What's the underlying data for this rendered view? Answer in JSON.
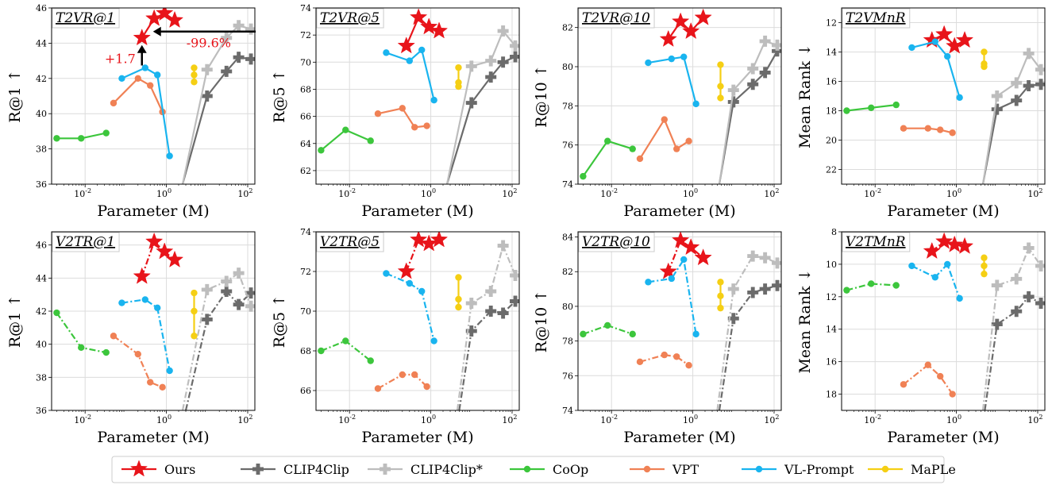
{
  "figure": {
    "background": "#ffffff",
    "grid": true
  },
  "series_styles": {
    "Ours": {
      "color": "#e8141a",
      "marker": "star"
    },
    "CLIP4Clip": {
      "color": "#6b6b6b",
      "marker": "plus"
    },
    "CLIP4Clip*": {
      "color": "#bdbdbd",
      "marker": "plus"
    },
    "CoOp": {
      "color": "#3cc63c",
      "marker": "circle"
    },
    "VPT": {
      "color": "#f08155",
      "marker": "circle"
    },
    "VL-Prompt": {
      "color": "#19b4ef",
      "marker": "circle"
    },
    "MaPLe": {
      "color": "#f5cf14",
      "marker": "circle"
    }
  },
  "legend": {
    "placement": "bottom-center",
    "entries": [
      "Ours",
      "CLIP4Clip",
      "CLIP4Clip*",
      "CoOp",
      "VPT",
      "VL-Prompt",
      "MaPLe"
    ]
  },
  "annotations": {
    "gain": "+1.7",
    "param_reduction": "-99.6%",
    "arrow_color": "#000000",
    "text_color": "#e8141a"
  },
  "chart_data": [
    {
      "type": "line",
      "title": "T2VR@1",
      "xlabel": "Parameter (M)",
      "ylabel": "R@1 ↑",
      "xscale": "log",
      "xlim": [
        0.0015,
        150
      ],
      "ylim": [
        36,
        46
      ],
      "yticks": [
        36,
        38,
        40,
        42,
        44,
        46
      ],
      "xticks": [
        "10^-2",
        "10^0",
        "10^2"
      ],
      "linestyle": "solid",
      "series": [
        {
          "name": "CoOp",
          "x": [
            0.002,
            0.008,
            0.033
          ],
          "y": [
            38.6,
            38.6,
            38.9
          ]
        },
        {
          "name": "VPT",
          "x": [
            0.05,
            0.2,
            0.4,
            0.8
          ],
          "y": [
            40.6,
            42.0,
            41.6,
            40.1
          ]
        },
        {
          "name": "VL-Prompt",
          "x": [
            0.08,
            0.3,
            0.6,
            1.2
          ],
          "y": [
            42.0,
            42.6,
            42.2,
            37.6
          ]
        },
        {
          "name": "MaPLe",
          "x": [
            4.8,
            4.8,
            4.8
          ],
          "y": [
            42.6,
            42.2,
            41.8
          ]
        },
        {
          "name": "CLIP4Clip",
          "x": [
            2.5,
            10,
            30,
            60,
            120
          ],
          "y": [
            36.0,
            41.0,
            42.4,
            43.2,
            43.1
          ]
        },
        {
          "name": "CLIP4Clip*",
          "x": [
            2.5,
            10,
            30,
            60,
            120
          ],
          "y": [
            36.0,
            42.5,
            44.3,
            45.0,
            44.8
          ]
        },
        {
          "name": "Ours",
          "x": [
            0.25,
            0.5,
            0.9,
            1.6
          ],
          "y": [
            44.3,
            45.4,
            45.7,
            45.3
          ]
        }
      ]
    },
    {
      "type": "line",
      "title": "T2VR@5",
      "xlabel": "Parameter (M)",
      "ylabel": "R@5 ↑",
      "xscale": "log",
      "xlim": [
        0.0015,
        150
      ],
      "ylim": [
        61,
        74
      ],
      "yticks": [
        62,
        64,
        66,
        68,
        70,
        72,
        74
      ],
      "xticks": [
        "10^-2",
        "10^0",
        "10^2"
      ],
      "linestyle": "solid",
      "series": [
        {
          "name": "CoOp",
          "x": [
            0.002,
            0.008,
            0.033
          ],
          "y": [
            63.5,
            65.0,
            64.2
          ]
        },
        {
          "name": "VPT",
          "x": [
            0.05,
            0.2,
            0.4,
            0.8
          ],
          "y": [
            66.2,
            66.6,
            65.2,
            65.3
          ]
        },
        {
          "name": "VL-Prompt",
          "x": [
            0.08,
            0.3,
            0.6,
            1.2
          ],
          "y": [
            70.7,
            70.1,
            70.9,
            67.2
          ]
        },
        {
          "name": "MaPLe",
          "x": [
            4.8,
            4.8,
            4.8
          ],
          "y": [
            69.6,
            68.5,
            68.2
          ]
        },
        {
          "name": "CLIP4Clip",
          "x": [
            2.5,
            10,
            30,
            60,
            120
          ],
          "y": [
            61.0,
            67.0,
            68.9,
            70.0,
            70.4
          ]
        },
        {
          "name": "CLIP4Clip*",
          "x": [
            2.5,
            10,
            30,
            60,
            120
          ],
          "y": [
            61.0,
            69.7,
            70.1,
            72.3,
            71.2
          ]
        },
        {
          "name": "Ours",
          "x": [
            0.25,
            0.5,
            0.9,
            1.6
          ],
          "y": [
            71.2,
            73.3,
            72.6,
            72.3
          ]
        }
      ]
    },
    {
      "type": "line",
      "title": "T2VR@10",
      "xlabel": "Parameter (M)",
      "ylabel": "R@10 ↑",
      "xscale": "log",
      "xlim": [
        0.0015,
        150
      ],
      "ylim": [
        74,
        83
      ],
      "yticks": [
        74,
        76,
        78,
        80,
        82
      ],
      "xticks": [
        "10^-2",
        "10^0",
        "10^2"
      ],
      "linestyle": "solid",
      "series": [
        {
          "name": "CoOp",
          "x": [
            0.002,
            0.008,
            0.033
          ],
          "y": [
            74.4,
            76.2,
            75.8
          ]
        },
        {
          "name": "VPT",
          "x": [
            0.05,
            0.2,
            0.4,
            0.8
          ],
          "y": [
            75.3,
            77.3,
            75.8,
            76.2
          ]
        },
        {
          "name": "VL-Prompt",
          "x": [
            0.08,
            0.3,
            0.6,
            1.2
          ],
          "y": [
            80.2,
            80.4,
            80.5,
            78.1
          ]
        },
        {
          "name": "MaPLe",
          "x": [
            4.8,
            4.8,
            4.8
          ],
          "y": [
            80.1,
            79.0,
            78.4
          ]
        },
        {
          "name": "CLIP4Clip",
          "x": [
            4.5,
            10,
            30,
            60,
            120
          ],
          "y": [
            74.0,
            78.2,
            79.1,
            79.7,
            80.8
          ]
        },
        {
          "name": "CLIP4Clip*",
          "x": [
            4.5,
            10,
            30,
            60,
            120
          ],
          "y": [
            74.0,
            78.8,
            79.9,
            81.3,
            81.1
          ]
        },
        {
          "name": "Ours",
          "x": [
            0.25,
            0.5,
            0.9,
            1.8
          ],
          "y": [
            81.4,
            82.3,
            81.8,
            82.5
          ]
        }
      ]
    },
    {
      "type": "line",
      "title": "T2VMnR",
      "xlabel": "Parameter (M)",
      "ylabel": "Mean Rank ↓",
      "xscale": "log",
      "xlim": [
        0.0015,
        150
      ],
      "ylim": [
        23,
        11
      ],
      "y_inverted": true,
      "yticks": [
        12,
        14,
        16,
        18,
        20,
        22
      ],
      "xticks": [
        "10^-2",
        "10^0",
        "10^2"
      ],
      "linestyle": "solid",
      "series": [
        {
          "name": "CoOp",
          "x": [
            0.002,
            0.008,
            0.033
          ],
          "y": [
            18.0,
            17.8,
            17.6
          ]
        },
        {
          "name": "VPT",
          "x": [
            0.05,
            0.2,
            0.4,
            0.8
          ],
          "y": [
            19.2,
            19.2,
            19.3,
            19.5
          ]
        },
        {
          "name": "VL-Prompt",
          "x": [
            0.08,
            0.3,
            0.6,
            1.2
          ],
          "y": [
            13.7,
            13.3,
            14.3,
            17.1
          ]
        },
        {
          "name": "MaPLe",
          "x": [
            4.8,
            4.8,
            4.8
          ],
          "y": [
            14.0,
            14.8,
            15.0
          ]
        },
        {
          "name": "CLIP4Clip",
          "x": [
            4.5,
            10,
            30,
            60,
            120
          ],
          "y": [
            23.0,
            17.9,
            17.3,
            16.3,
            16.2
          ]
        },
        {
          "name": "CLIP4Clip*",
          "x": [
            4.5,
            10,
            30,
            60,
            120
          ],
          "y": [
            23.0,
            17.0,
            16.1,
            14.1,
            15.2
          ]
        },
        {
          "name": "Ours",
          "x": [
            0.25,
            0.5,
            0.9,
            1.6
          ],
          "y": [
            13.2,
            12.8,
            13.6,
            13.2
          ]
        }
      ]
    },
    {
      "type": "line",
      "title": "V2TR@1",
      "xlabel": "Parameter (M)",
      "ylabel": "R@1 ↑",
      "xscale": "log",
      "xlim": [
        0.0015,
        150
      ],
      "ylim": [
        36,
        46.8
      ],
      "yticks": [
        36,
        38,
        40,
        42,
        44,
        46
      ],
      "xticks": [
        "10^-2",
        "10^0",
        "10^2"
      ],
      "linestyle": "dashdot",
      "series": [
        {
          "name": "CoOp",
          "x": [
            0.002,
            0.008,
            0.033
          ],
          "y": [
            41.9,
            39.8,
            39.5
          ]
        },
        {
          "name": "VPT",
          "x": [
            0.05,
            0.2,
            0.4,
            0.8
          ],
          "y": [
            40.5,
            39.4,
            37.7,
            37.4
          ]
        },
        {
          "name": "VL-Prompt",
          "x": [
            0.08,
            0.3,
            0.6,
            1.2
          ],
          "y": [
            42.5,
            42.7,
            42.2,
            38.4
          ]
        },
        {
          "name": "MaPLe",
          "x": [
            4.8,
            4.8,
            4.8
          ],
          "y": [
            43.1,
            42.0,
            40.5
          ]
        },
        {
          "name": "CLIP4Clip",
          "x": [
            3.0,
            10,
            30,
            60,
            120
          ],
          "y": [
            36.0,
            41.5,
            43.2,
            42.4,
            43.1
          ]
        },
        {
          "name": "CLIP4Clip*",
          "x": [
            2.5,
            10,
            30,
            60,
            120
          ],
          "y": [
            36.0,
            43.3,
            43.8,
            44.3,
            42.3
          ]
        },
        {
          "name": "Ours",
          "x": [
            0.25,
            0.5,
            0.9,
            1.6
          ],
          "y": [
            44.1,
            46.2,
            45.6,
            45.1
          ]
        }
      ]
    },
    {
      "type": "line",
      "title": "V2TR@5",
      "xlabel": "Parameter (M)",
      "ylabel": "R@5 ↑",
      "xscale": "log",
      "xlim": [
        0.0015,
        150
      ],
      "ylim": [
        65,
        74
      ],
      "yticks": [
        66,
        68,
        70,
        72,
        74
      ],
      "xticks": [
        "10^-2",
        "10^0",
        "10^2"
      ],
      "linestyle": "dashdot",
      "series": [
        {
          "name": "CoOp",
          "x": [
            0.002,
            0.008,
            0.033
          ],
          "y": [
            68.0,
            68.5,
            67.5
          ]
        },
        {
          "name": "VPT",
          "x": [
            0.05,
            0.2,
            0.4,
            0.8
          ],
          "y": [
            66.1,
            66.8,
            66.8,
            66.2
          ]
        },
        {
          "name": "VL-Prompt",
          "x": [
            0.08,
            0.3,
            0.6,
            1.2
          ],
          "y": [
            71.9,
            71.4,
            71.0,
            68.5
          ]
        },
        {
          "name": "MaPLe",
          "x": [
            4.8,
            4.8,
            4.8
          ],
          "y": [
            71.7,
            70.6,
            70.2
          ]
        },
        {
          "name": "CLIP4Clip",
          "x": [
            5.0,
            10,
            30,
            60,
            120
          ],
          "y": [
            65.0,
            69.0,
            70.0,
            69.9,
            70.5
          ]
        },
        {
          "name": "CLIP4Clip*",
          "x": [
            4.5,
            10,
            30,
            60,
            120
          ],
          "y": [
            65.0,
            70.4,
            71.0,
            73.3,
            71.8
          ]
        },
        {
          "name": "Ours",
          "x": [
            0.25,
            0.5,
            0.9,
            1.6
          ],
          "y": [
            72.0,
            73.6,
            73.4,
            73.6
          ]
        }
      ]
    },
    {
      "type": "line",
      "title": "V2TR@10",
      "xlabel": "Parameter (M)",
      "ylabel": "R@10 ↑",
      "xscale": "log",
      "xlim": [
        0.0015,
        150
      ],
      "ylim": [
        74,
        84.3
      ],
      "yticks": [
        74,
        76,
        78,
        80,
        82,
        84
      ],
      "xticks": [
        "10^-2",
        "10^0",
        "10^2"
      ],
      "linestyle": "dashdot",
      "series": [
        {
          "name": "CoOp",
          "x": [
            0.002,
            0.008,
            0.033
          ],
          "y": [
            78.4,
            78.9,
            78.4
          ]
        },
        {
          "name": "VPT",
          "x": [
            0.05,
            0.2,
            0.4,
            0.8
          ],
          "y": [
            76.8,
            77.2,
            77.1,
            76.6
          ]
        },
        {
          "name": "VL-Prompt",
          "x": [
            0.08,
            0.3,
            0.6,
            1.2
          ],
          "y": [
            81.4,
            81.6,
            82.7,
            78.4
          ]
        },
        {
          "name": "MaPLe",
          "x": [
            4.8,
            4.8,
            4.8
          ],
          "y": [
            81.4,
            80.6,
            79.9
          ]
        },
        {
          "name": "CLIP4Clip",
          "x": [
            4.5,
            10,
            30,
            60,
            120
          ],
          "y": [
            74.0,
            79.3,
            80.8,
            81.0,
            81.2
          ]
        },
        {
          "name": "CLIP4Clip*",
          "x": [
            4.0,
            10,
            30,
            60,
            120
          ],
          "y": [
            74.0,
            81.0,
            82.9,
            82.8,
            82.5
          ]
        },
        {
          "name": "Ours",
          "x": [
            0.25,
            0.5,
            0.9,
            1.8
          ],
          "y": [
            82.0,
            83.8,
            83.4,
            82.8
          ]
        }
      ]
    },
    {
      "type": "line",
      "title": "V2TMnR",
      "xlabel": "Parameter (M)",
      "ylabel": "Mean Rank ↓",
      "xscale": "log",
      "xlim": [
        0.0015,
        150
      ],
      "ylim": [
        19,
        8
      ],
      "y_inverted": true,
      "yticks": [
        8,
        10,
        12,
        14,
        16,
        18
      ],
      "xticks": [
        "10^-2",
        "10^0",
        "10^2"
      ],
      "linestyle": "dashdot",
      "series": [
        {
          "name": "CoOp",
          "x": [
            0.002,
            0.008,
            0.033
          ],
          "y": [
            11.6,
            11.2,
            11.3
          ]
        },
        {
          "name": "VPT",
          "x": [
            0.05,
            0.2,
            0.4,
            0.8
          ],
          "y": [
            17.4,
            16.2,
            16.9,
            18.0
          ]
        },
        {
          "name": "VL-Prompt",
          "x": [
            0.08,
            0.3,
            0.6,
            1.2
          ],
          "y": [
            10.1,
            10.8,
            10.0,
            12.1
          ]
        },
        {
          "name": "MaPLe",
          "x": [
            4.8,
            4.8,
            4.8
          ],
          "y": [
            9.6,
            10.1,
            10.6
          ]
        },
        {
          "name": "CLIP4Clip",
          "x": [
            5.0,
            10,
            30,
            60,
            120
          ],
          "y": [
            19.0,
            13.7,
            12.9,
            12.0,
            12.4
          ]
        },
        {
          "name": "CLIP4Clip*",
          "x": [
            4.5,
            10,
            30,
            60,
            120
          ],
          "y": [
            19.0,
            11.3,
            10.9,
            9.0,
            10.1
          ]
        },
        {
          "name": "Ours",
          "x": [
            0.25,
            0.5,
            0.9,
            1.6
          ],
          "y": [
            9.2,
            8.6,
            8.8,
            8.9
          ]
        }
      ]
    }
  ]
}
